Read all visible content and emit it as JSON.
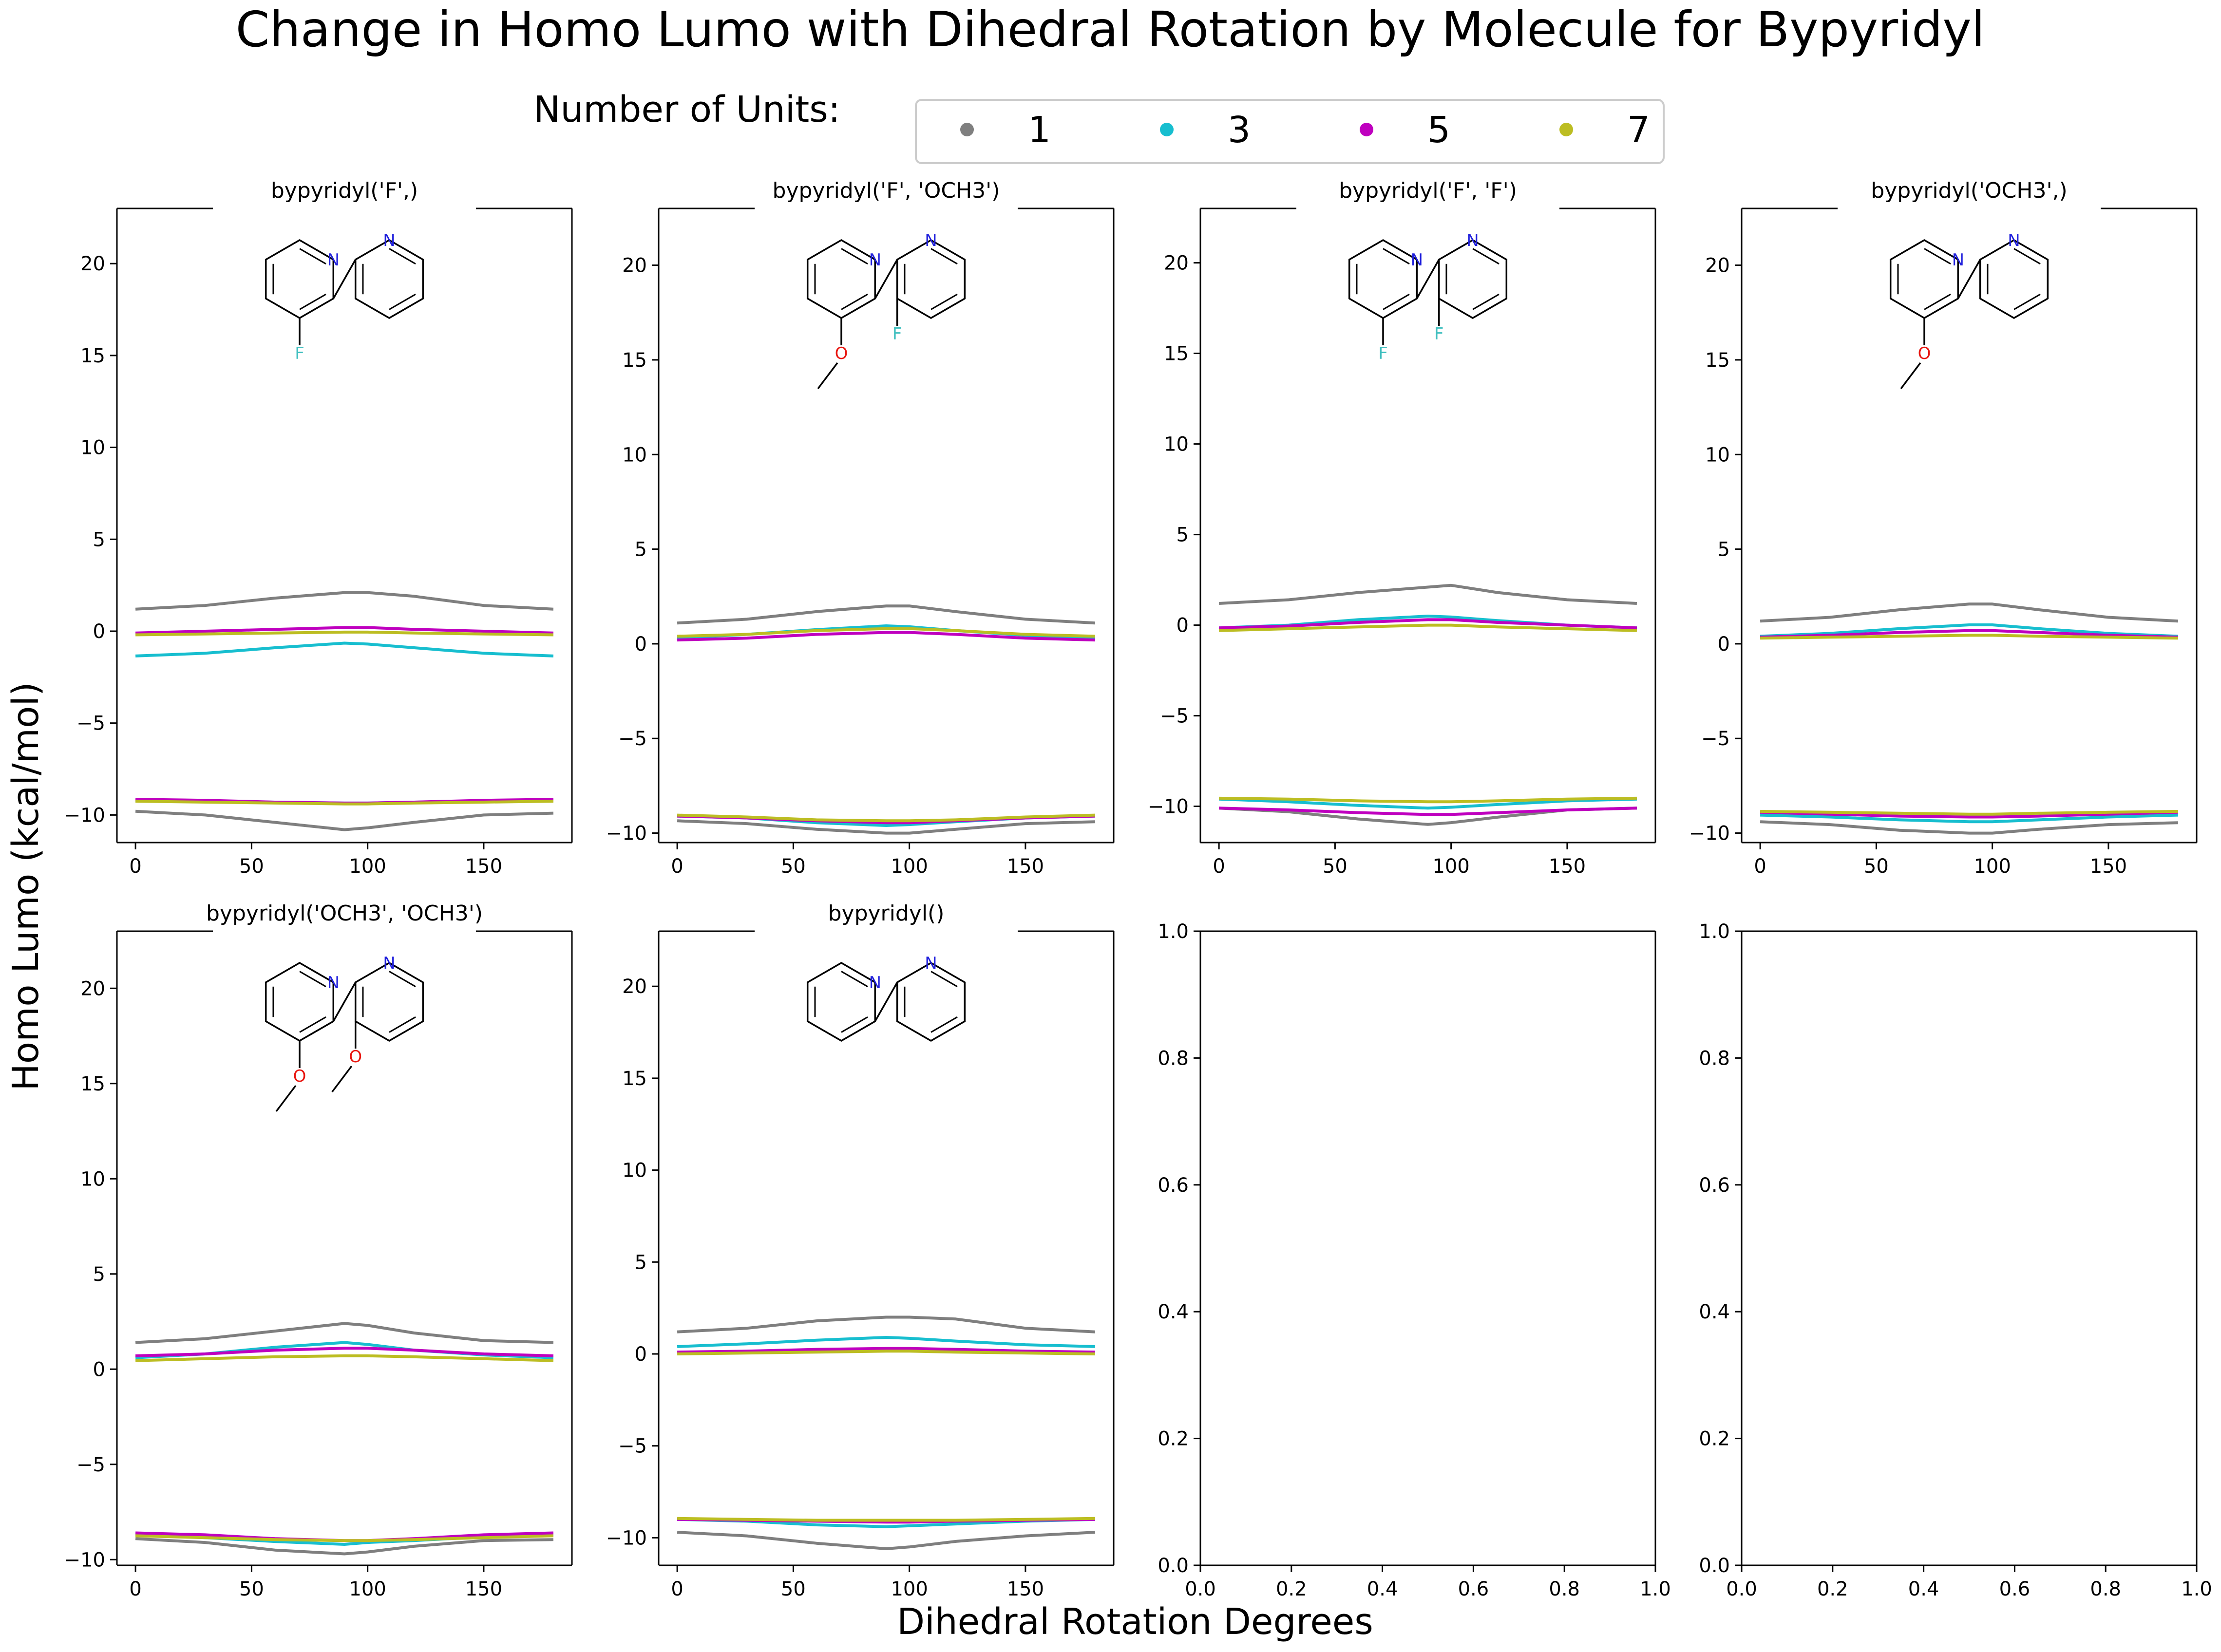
{
  "figure": {
    "title": "Change in Homo Lumo with Dihedral Rotation by Molecule for Bypyridyl",
    "xlabel": "Dihedral Rotation Degrees",
    "ylabel": "Homo Lumo (kcal/mol)"
  },
  "legend": {
    "title": "Number of Units:",
    "entries": [
      {
        "label": "1",
        "color": "#7f7f7f"
      },
      {
        "label": "3",
        "color": "#17becf"
      },
      {
        "label": "5",
        "color": "#bf00bf"
      },
      {
        "label": "7",
        "color": "#bcbd22"
      }
    ]
  },
  "chart_data": [
    {
      "type": "line",
      "title": "bypyridyl('F',)",
      "molecule": {
        "substituents": [
          "F",
          null
        ],
        "label_color": {
          "F": "#3fbfbf",
          "O": "#e8140e",
          "N": "#1f1fdc"
        }
      },
      "x": [
        0,
        30,
        60,
        90,
        100,
        120,
        150,
        180
      ],
      "xticks": [
        0,
        50,
        100,
        150
      ],
      "yticks": [
        -10,
        -5,
        0,
        5,
        10,
        15,
        20
      ],
      "ylim": [
        -11.5,
        23
      ],
      "xlim": [
        -8,
        188
      ],
      "series": [
        {
          "units": "1",
          "kind": "lumo",
          "values": [
            1.2,
            1.4,
            1.8,
            2.1,
            2.1,
            1.9,
            1.4,
            1.2
          ]
        },
        {
          "units": "3",
          "kind": "lumo",
          "values": [
            -1.35,
            -1.2,
            -0.9,
            -0.65,
            -0.7,
            -0.9,
            -1.2,
            -1.35
          ]
        },
        {
          "units": "5",
          "kind": "lumo",
          "values": [
            -0.1,
            0.0,
            0.1,
            0.2,
            0.2,
            0.1,
            0.0,
            -0.1
          ]
        },
        {
          "units": "7",
          "kind": "lumo",
          "values": [
            -0.2,
            -0.15,
            -0.1,
            -0.05,
            -0.05,
            -0.1,
            -0.15,
            -0.2
          ]
        },
        {
          "units": "1",
          "kind": "homo",
          "values": [
            -9.8,
            -10.0,
            -10.4,
            -10.8,
            -10.7,
            -10.4,
            -10.0,
            -9.9
          ]
        },
        {
          "units": "3",
          "kind": "homo",
          "values": [
            -9.2,
            -9.25,
            -9.3,
            -9.35,
            -9.35,
            -9.3,
            -9.25,
            -9.2
          ]
        },
        {
          "units": "5",
          "kind": "homo",
          "values": [
            -9.15,
            -9.2,
            -9.3,
            -9.35,
            -9.35,
            -9.3,
            -9.2,
            -9.15
          ]
        },
        {
          "units": "7",
          "kind": "homo",
          "values": [
            -9.25,
            -9.3,
            -9.35,
            -9.4,
            -9.4,
            -9.35,
            -9.3,
            -9.25
          ]
        }
      ]
    },
    {
      "type": "line",
      "title": "bypyridyl('F', 'OCH3')",
      "molecule": {
        "substituents": [
          "OCH3",
          "F"
        ],
        "label_color": {
          "F": "#3fbfbf",
          "O": "#e8140e",
          "N": "#1f1fdc"
        }
      },
      "x": [
        0,
        30,
        60,
        90,
        100,
        120,
        150,
        180
      ],
      "xticks": [
        0,
        50,
        100,
        150
      ],
      "yticks": [
        -10,
        -5,
        0,
        5,
        10,
        15,
        20
      ],
      "ylim": [
        -10.5,
        23
      ],
      "xlim": [
        -8,
        188
      ],
      "series": [
        {
          "units": "1",
          "kind": "lumo",
          "values": [
            1.1,
            1.3,
            1.7,
            2.0,
            2.0,
            1.7,
            1.3,
            1.1
          ]
        },
        {
          "units": "3",
          "kind": "lumo",
          "values": [
            0.3,
            0.5,
            0.75,
            0.95,
            0.9,
            0.7,
            0.45,
            0.3
          ]
        },
        {
          "units": "5",
          "kind": "lumo",
          "values": [
            0.2,
            0.3,
            0.5,
            0.6,
            0.6,
            0.5,
            0.3,
            0.2
          ]
        },
        {
          "units": "7",
          "kind": "lumo",
          "values": [
            0.4,
            0.5,
            0.7,
            0.8,
            0.8,
            0.7,
            0.5,
            0.4
          ]
        },
        {
          "units": "1",
          "kind": "homo",
          "values": [
            -9.35,
            -9.5,
            -9.8,
            -10.0,
            -10.0,
            -9.8,
            -9.5,
            -9.4
          ]
        },
        {
          "units": "3",
          "kind": "homo",
          "values": [
            -9.1,
            -9.2,
            -9.45,
            -9.6,
            -9.55,
            -9.4,
            -9.2,
            -9.1
          ]
        },
        {
          "units": "5",
          "kind": "homo",
          "values": [
            -9.1,
            -9.2,
            -9.35,
            -9.45,
            -9.45,
            -9.35,
            -9.2,
            -9.1
          ]
        },
        {
          "units": "7",
          "kind": "homo",
          "values": [
            -9.05,
            -9.15,
            -9.3,
            -9.35,
            -9.35,
            -9.3,
            -9.15,
            -9.05
          ]
        }
      ]
    },
    {
      "type": "line",
      "title": "bypyridyl('F', 'F')",
      "molecule": {
        "substituents": [
          "F",
          "F"
        ],
        "label_color": {
          "F": "#3fbfbf",
          "O": "#e8140e",
          "N": "#1f1fdc"
        }
      },
      "x": [
        0,
        30,
        60,
        90,
        100,
        120,
        150,
        180
      ],
      "xticks": [
        0,
        50,
        100,
        150
      ],
      "yticks": [
        -10,
        -5,
        0,
        5,
        10,
        15,
        20
      ],
      "ylim": [
        -12,
        23
      ],
      "xlim": [
        -8,
        188
      ],
      "series": [
        {
          "units": "1",
          "kind": "lumo",
          "values": [
            1.2,
            1.4,
            1.8,
            2.1,
            2.2,
            1.8,
            1.4,
            1.2
          ]
        },
        {
          "units": "3",
          "kind": "lumo",
          "values": [
            -0.15,
            0.0,
            0.3,
            0.5,
            0.45,
            0.25,
            0.0,
            -0.15
          ]
        },
        {
          "units": "5",
          "kind": "lumo",
          "values": [
            -0.15,
            -0.05,
            0.15,
            0.3,
            0.3,
            0.15,
            0.0,
            -0.15
          ]
        },
        {
          "units": "7",
          "kind": "lumo",
          "values": [
            -0.3,
            -0.2,
            -0.1,
            0.0,
            0.0,
            -0.1,
            -0.2,
            -0.3
          ]
        },
        {
          "units": "1",
          "kind": "homo",
          "values": [
            -10.1,
            -10.3,
            -10.7,
            -11.0,
            -10.9,
            -10.6,
            -10.2,
            -10.1
          ]
        },
        {
          "units": "3",
          "kind": "homo",
          "values": [
            -9.6,
            -9.75,
            -9.95,
            -10.1,
            -10.05,
            -9.9,
            -9.7,
            -9.6
          ]
        },
        {
          "units": "5",
          "kind": "homo",
          "values": [
            -10.1,
            -10.2,
            -10.35,
            -10.45,
            -10.45,
            -10.35,
            -10.2,
            -10.1
          ]
        },
        {
          "units": "7",
          "kind": "homo",
          "values": [
            -9.55,
            -9.6,
            -9.7,
            -9.75,
            -9.75,
            -9.7,
            -9.6,
            -9.55
          ]
        }
      ]
    },
    {
      "type": "line",
      "title": "bypyridyl('OCH3',)",
      "molecule": {
        "substituents": [
          "OCH3",
          null
        ],
        "label_color": {
          "F": "#3fbfbf",
          "O": "#e8140e",
          "N": "#1f1fdc"
        }
      },
      "x": [
        0,
        30,
        60,
        90,
        100,
        120,
        150,
        180
      ],
      "xticks": [
        0,
        50,
        100,
        150
      ],
      "yticks": [
        -10,
        -5,
        0,
        5,
        10,
        15,
        20
      ],
      "ylim": [
        -10.5,
        23
      ],
      "xlim": [
        -8,
        188
      ],
      "series": [
        {
          "units": "1",
          "kind": "lumo",
          "values": [
            1.2,
            1.4,
            1.8,
            2.1,
            2.1,
            1.8,
            1.4,
            1.2
          ]
        },
        {
          "units": "3",
          "kind": "lumo",
          "values": [
            0.4,
            0.55,
            0.8,
            1.0,
            1.0,
            0.8,
            0.55,
            0.4
          ]
        },
        {
          "units": "5",
          "kind": "lumo",
          "values": [
            0.35,
            0.45,
            0.6,
            0.7,
            0.7,
            0.6,
            0.45,
            0.35
          ]
        },
        {
          "units": "7",
          "kind": "lumo",
          "values": [
            0.3,
            0.35,
            0.4,
            0.45,
            0.45,
            0.4,
            0.35,
            0.3
          ]
        },
        {
          "units": "1",
          "kind": "homo",
          "values": [
            -9.4,
            -9.55,
            -9.85,
            -10.0,
            -10.0,
            -9.8,
            -9.55,
            -9.45
          ]
        },
        {
          "units": "3",
          "kind": "homo",
          "values": [
            -9.05,
            -9.15,
            -9.3,
            -9.4,
            -9.4,
            -9.3,
            -9.15,
            -9.05
          ]
        },
        {
          "units": "5",
          "kind": "homo",
          "values": [
            -8.9,
            -9.0,
            -9.1,
            -9.15,
            -9.15,
            -9.1,
            -9.0,
            -8.9
          ]
        },
        {
          "units": "7",
          "kind": "homo",
          "values": [
            -8.85,
            -8.9,
            -8.95,
            -9.0,
            -9.0,
            -8.95,
            -8.9,
            -8.85
          ]
        }
      ]
    },
    {
      "type": "line",
      "title": "bypyridyl('OCH3', 'OCH3')",
      "molecule": {
        "substituents": [
          "OCH3",
          "OCH3"
        ],
        "label_color": {
          "F": "#3fbfbf",
          "O": "#e8140e",
          "N": "#1f1fdc"
        }
      },
      "x": [
        0,
        30,
        60,
        90,
        100,
        120,
        150,
        180
      ],
      "xticks": [
        0,
        50,
        100,
        150
      ],
      "yticks": [
        -10,
        -5,
        0,
        5,
        10,
        15,
        20
      ],
      "ylim": [
        -10.3,
        23
      ],
      "xlim": [
        -8,
        188
      ],
      "series": [
        {
          "units": "1",
          "kind": "lumo",
          "values": [
            1.4,
            1.6,
            2.0,
            2.4,
            2.3,
            1.9,
            1.5,
            1.4
          ]
        },
        {
          "units": "3",
          "kind": "lumo",
          "values": [
            0.6,
            0.8,
            1.15,
            1.4,
            1.3,
            1.0,
            0.75,
            0.6
          ]
        },
        {
          "units": "5",
          "kind": "lumo",
          "values": [
            0.7,
            0.8,
            1.0,
            1.1,
            1.1,
            1.0,
            0.8,
            0.7
          ]
        },
        {
          "units": "7",
          "kind": "lumo",
          "values": [
            0.45,
            0.55,
            0.65,
            0.7,
            0.7,
            0.65,
            0.55,
            0.45
          ]
        },
        {
          "units": "1",
          "kind": "homo",
          "values": [
            -8.9,
            -9.1,
            -9.5,
            -9.7,
            -9.6,
            -9.3,
            -9.0,
            -8.95
          ]
        },
        {
          "units": "3",
          "kind": "homo",
          "values": [
            -8.7,
            -8.85,
            -9.05,
            -9.2,
            -9.1,
            -9.0,
            -8.8,
            -8.7
          ]
        },
        {
          "units": "5",
          "kind": "homo",
          "values": [
            -8.6,
            -8.7,
            -8.9,
            -9.0,
            -9.0,
            -8.9,
            -8.7,
            -8.6
          ]
        },
        {
          "units": "7",
          "kind": "homo",
          "values": [
            -8.75,
            -8.85,
            -8.95,
            -9.0,
            -9.0,
            -8.95,
            -8.85,
            -8.75
          ]
        }
      ]
    },
    {
      "type": "line",
      "title": "bypyridyl()",
      "molecule": {
        "substituents": [
          null,
          null
        ],
        "label_color": {
          "F": "#3fbfbf",
          "O": "#e8140e",
          "N": "#1f1fdc"
        }
      },
      "x": [
        0,
        30,
        60,
        90,
        100,
        120,
        150,
        180
      ],
      "xticks": [
        0,
        50,
        100,
        150
      ],
      "yticks": [
        -10,
        -5,
        0,
        5,
        10,
        15,
        20
      ],
      "ylim": [
        -11.5,
        23
      ],
      "xlim": [
        -8,
        188
      ],
      "series": [
        {
          "units": "1",
          "kind": "lumo",
          "values": [
            1.2,
            1.4,
            1.8,
            2.0,
            2.0,
            1.9,
            1.4,
            1.2
          ]
        },
        {
          "units": "3",
          "kind": "lumo",
          "values": [
            0.4,
            0.55,
            0.75,
            0.9,
            0.85,
            0.7,
            0.5,
            0.4
          ]
        },
        {
          "units": "5",
          "kind": "lumo",
          "values": [
            0.1,
            0.15,
            0.25,
            0.3,
            0.3,
            0.25,
            0.15,
            0.1
          ]
        },
        {
          "units": "7",
          "kind": "lumo",
          "values": [
            0.0,
            0.05,
            0.1,
            0.15,
            0.15,
            0.1,
            0.05,
            0.0
          ]
        },
        {
          "units": "1",
          "kind": "homo",
          "values": [
            -9.7,
            -9.9,
            -10.3,
            -10.6,
            -10.5,
            -10.2,
            -9.9,
            -9.7
          ]
        },
        {
          "units": "3",
          "kind": "homo",
          "values": [
            -9.0,
            -9.1,
            -9.3,
            -9.4,
            -9.35,
            -9.25,
            -9.1,
            -9.0
          ]
        },
        {
          "units": "5",
          "kind": "homo",
          "values": [
            -9.0,
            -9.05,
            -9.1,
            -9.15,
            -9.15,
            -9.1,
            -9.05,
            -9.0
          ]
        },
        {
          "units": "7",
          "kind": "homo",
          "values": [
            -8.95,
            -9.0,
            -9.05,
            -9.05,
            -9.05,
            -9.05,
            -9.0,
            -8.95
          ]
        }
      ]
    },
    {
      "type": "line",
      "title": "",
      "empty": true,
      "xlim": [
        0,
        1
      ],
      "ylim": [
        0,
        1
      ],
      "xticks": [
        0.0,
        0.2,
        0.4,
        0.6,
        0.8,
        1.0
      ],
      "yticks": [
        0.0,
        0.2,
        0.4,
        0.6,
        0.8,
        1.0
      ],
      "series": []
    },
    {
      "type": "line",
      "title": "",
      "empty": true,
      "xlim": [
        0,
        1
      ],
      "ylim": [
        0,
        1
      ],
      "xticks": [
        0.0,
        0.2,
        0.4,
        0.6,
        0.8,
        1.0
      ],
      "yticks": [
        0.0,
        0.2,
        0.4,
        0.6,
        0.8,
        1.0
      ],
      "series": []
    }
  ]
}
